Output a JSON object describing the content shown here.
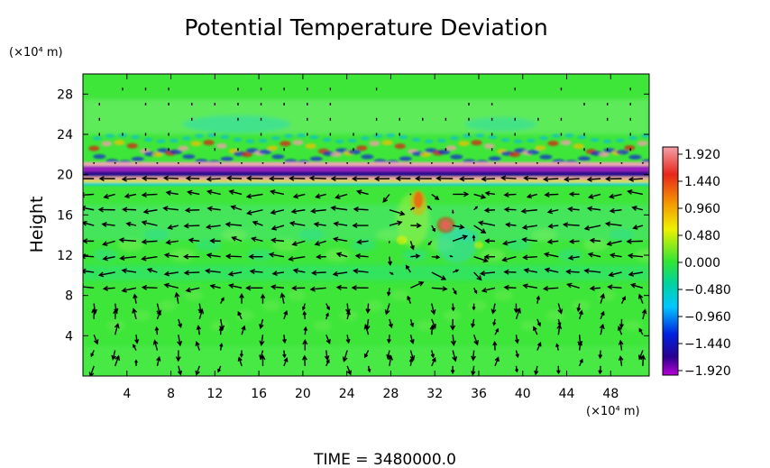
{
  "chart_data": {
    "type": "heatmap",
    "title": "Potential Temperature Deviation",
    "ylabel": "Height",
    "y_unit": "(×10⁴ m)",
    "x_unit": "(×10⁴ m)",
    "xlim": [
      0,
      51.5
    ],
    "ylim": [
      0,
      30
    ],
    "x_ticks": [
      "4",
      "8",
      "12",
      "16",
      "20",
      "24",
      "28",
      "32",
      "36",
      "40",
      "44",
      "48"
    ],
    "y_ticks": [
      "4",
      "8",
      "12",
      "16",
      "20",
      "24",
      "28"
    ],
    "x_tick_values": [
      4,
      8,
      12,
      16,
      20,
      24,
      28,
      32,
      36,
      40,
      44,
      48
    ],
    "y_tick_values": [
      4,
      8,
      12,
      16,
      20,
      24,
      28
    ],
    "colorbar": {
      "labels": [
        "1.920",
        "1.440",
        "0.960",
        "0.480",
        "0.000",
        "−0.480",
        "−0.960",
        "−1.440",
        "−1.920"
      ],
      "values": [
        1.92,
        1.44,
        0.96,
        0.48,
        0.0,
        -0.48,
        -0.96,
        -1.44,
        -1.92
      ],
      "range": [
        -1.92,
        1.92
      ]
    },
    "features": [
      {
        "name": "strong inversion layer",
        "y": 20.2,
        "value_range": [
          -1.92,
          1.92
        ]
      },
      {
        "name": "wave-breaking band",
        "y_range": [
          21,
          24.5
        ],
        "value_range": [
          -1.44,
          1.44
        ]
      },
      {
        "name": "warm anomaly",
        "x": 30.5,
        "y": 17.5,
        "value": 1.44
      },
      {
        "name": "warm anomaly",
        "x": 33,
        "y": 15,
        "value": 1.92
      },
      {
        "name": "cool band",
        "y_range": [
          9,
          11
        ],
        "value": -0.3
      }
    ],
    "grid": false,
    "vectors": "horizontal wind field shown as black arrows"
  },
  "footer": {
    "time_label": "TIME  =  3480000.0"
  }
}
